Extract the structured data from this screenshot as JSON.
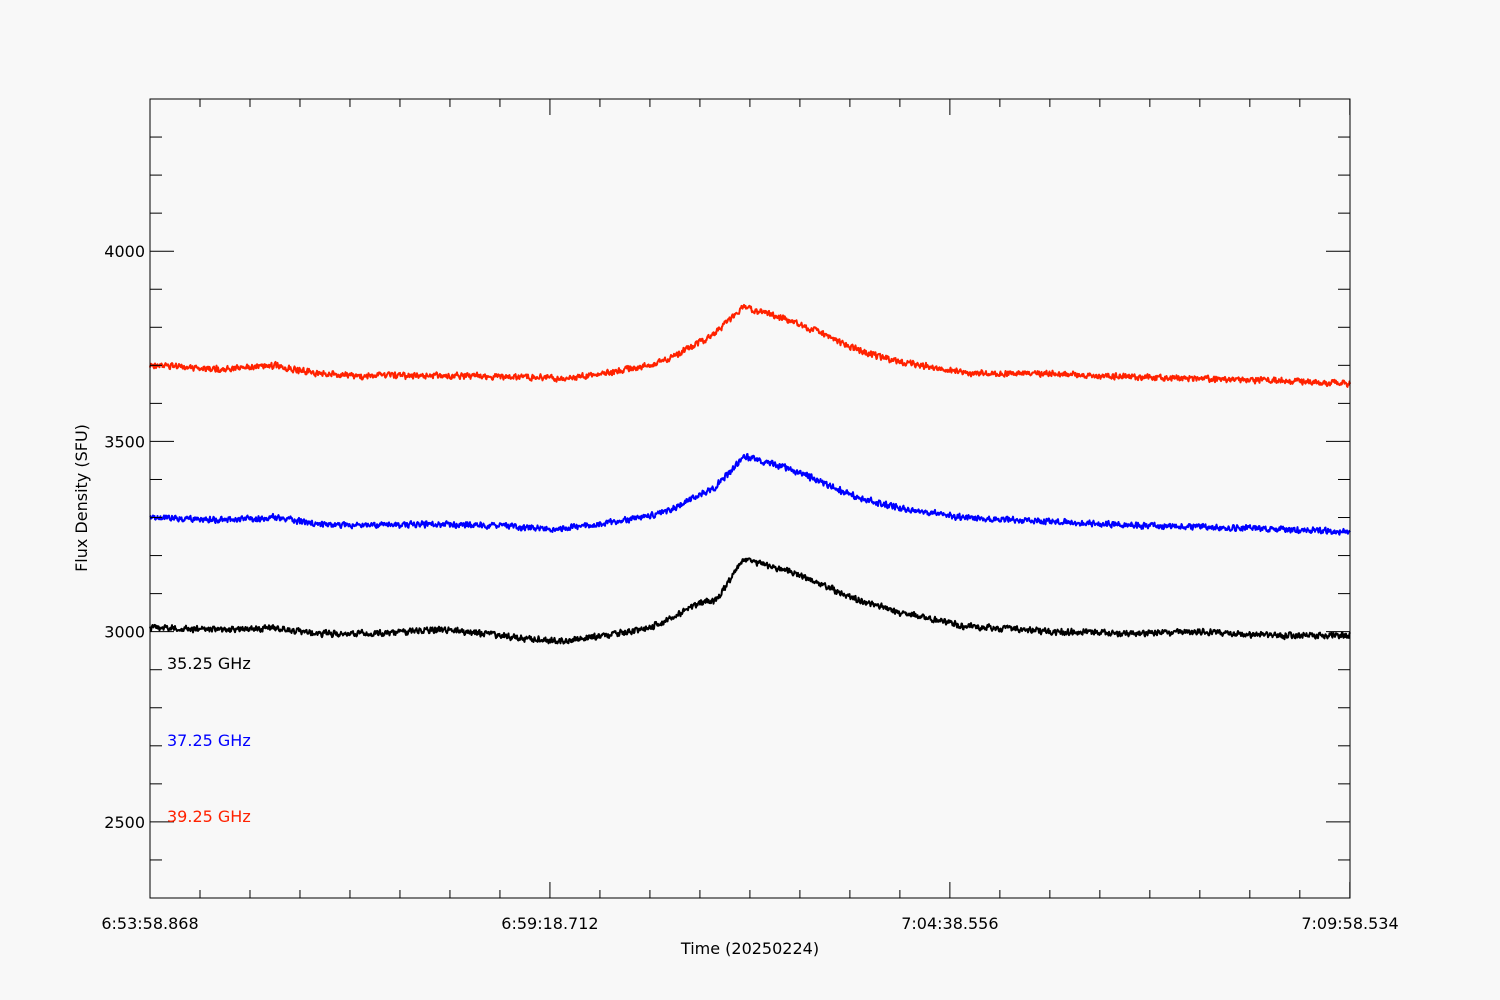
{
  "chart_data": {
    "type": "line",
    "xlabel": "Time (20250224)",
    "ylabel": "Flux Density (SFU)",
    "x_tick_labels": [
      "6:53:58.868",
      "6:59:18.712",
      "7:04:38.556",
      "7:09:58.534"
    ],
    "x_tick_seconds": [
      0,
      319.844,
      639.688,
      959.666
    ],
    "x_minor_tick_step_s": 39.98,
    "xlim_s": [
      0,
      959.666
    ],
    "ylim": [
      2300,
      4400
    ],
    "y_tick_values": [
      2500,
      3000,
      3500,
      4000
    ],
    "y_minor_tick_step": 100,
    "grid": false,
    "legend_position": "bottom-left",
    "noise_amplitude": 10,
    "series": [
      {
        "name": "35.25 GHz",
        "color": "#000000",
        "x_seconds": [
          0,
          60,
          100,
          130,
          165,
          240,
          300,
          330,
          365,
          400,
          420,
          430,
          445,
          452,
          475,
          510,
          540,
          560,
          575,
          600,
          650,
          720,
          780,
          840,
          900,
          959.666
        ],
        "values": [
          3010,
          3005,
          3010,
          2995,
          2995,
          3005,
          2982,
          2975,
          2990,
          3010,
          3040,
          3060,
          3080,
          3080,
          3190,
          3160,
          3120,
          3090,
          3075,
          3050,
          3015,
          3000,
          2995,
          3000,
          2990,
          2990
        ]
      },
      {
        "name": "37.25 GHz",
        "color": "#0000ff",
        "x_seconds": [
          0,
          60,
          100,
          130,
          165,
          240,
          300,
          330,
          365,
          400,
          420,
          430,
          445,
          452,
          475,
          510,
          540,
          560,
          575,
          600,
          650,
          720,
          780,
          840,
          900,
          959.666
        ],
        "values": [
          3300,
          3293,
          3300,
          3285,
          3280,
          3282,
          3275,
          3270,
          3285,
          3305,
          3325,
          3345,
          3370,
          3380,
          3460,
          3430,
          3390,
          3360,
          3345,
          3325,
          3300,
          3290,
          3280,
          3275,
          3270,
          3262
        ]
      },
      {
        "name": "39.25 GHz",
        "color": "#ff2200",
        "x_seconds": [
          0,
          60,
          100,
          130,
          165,
          240,
          300,
          330,
          365,
          400,
          420,
          430,
          445,
          452,
          475,
          510,
          540,
          560,
          575,
          600,
          650,
          720,
          780,
          840,
          900,
          959.666
        ],
        "values": [
          3700,
          3690,
          3700,
          3680,
          3672,
          3673,
          3670,
          3665,
          3680,
          3700,
          3725,
          3745,
          3770,
          3785,
          3855,
          3820,
          3780,
          3750,
          3730,
          3710,
          3680,
          3678,
          3670,
          3665,
          3660,
          3652
        ]
      }
    ]
  }
}
